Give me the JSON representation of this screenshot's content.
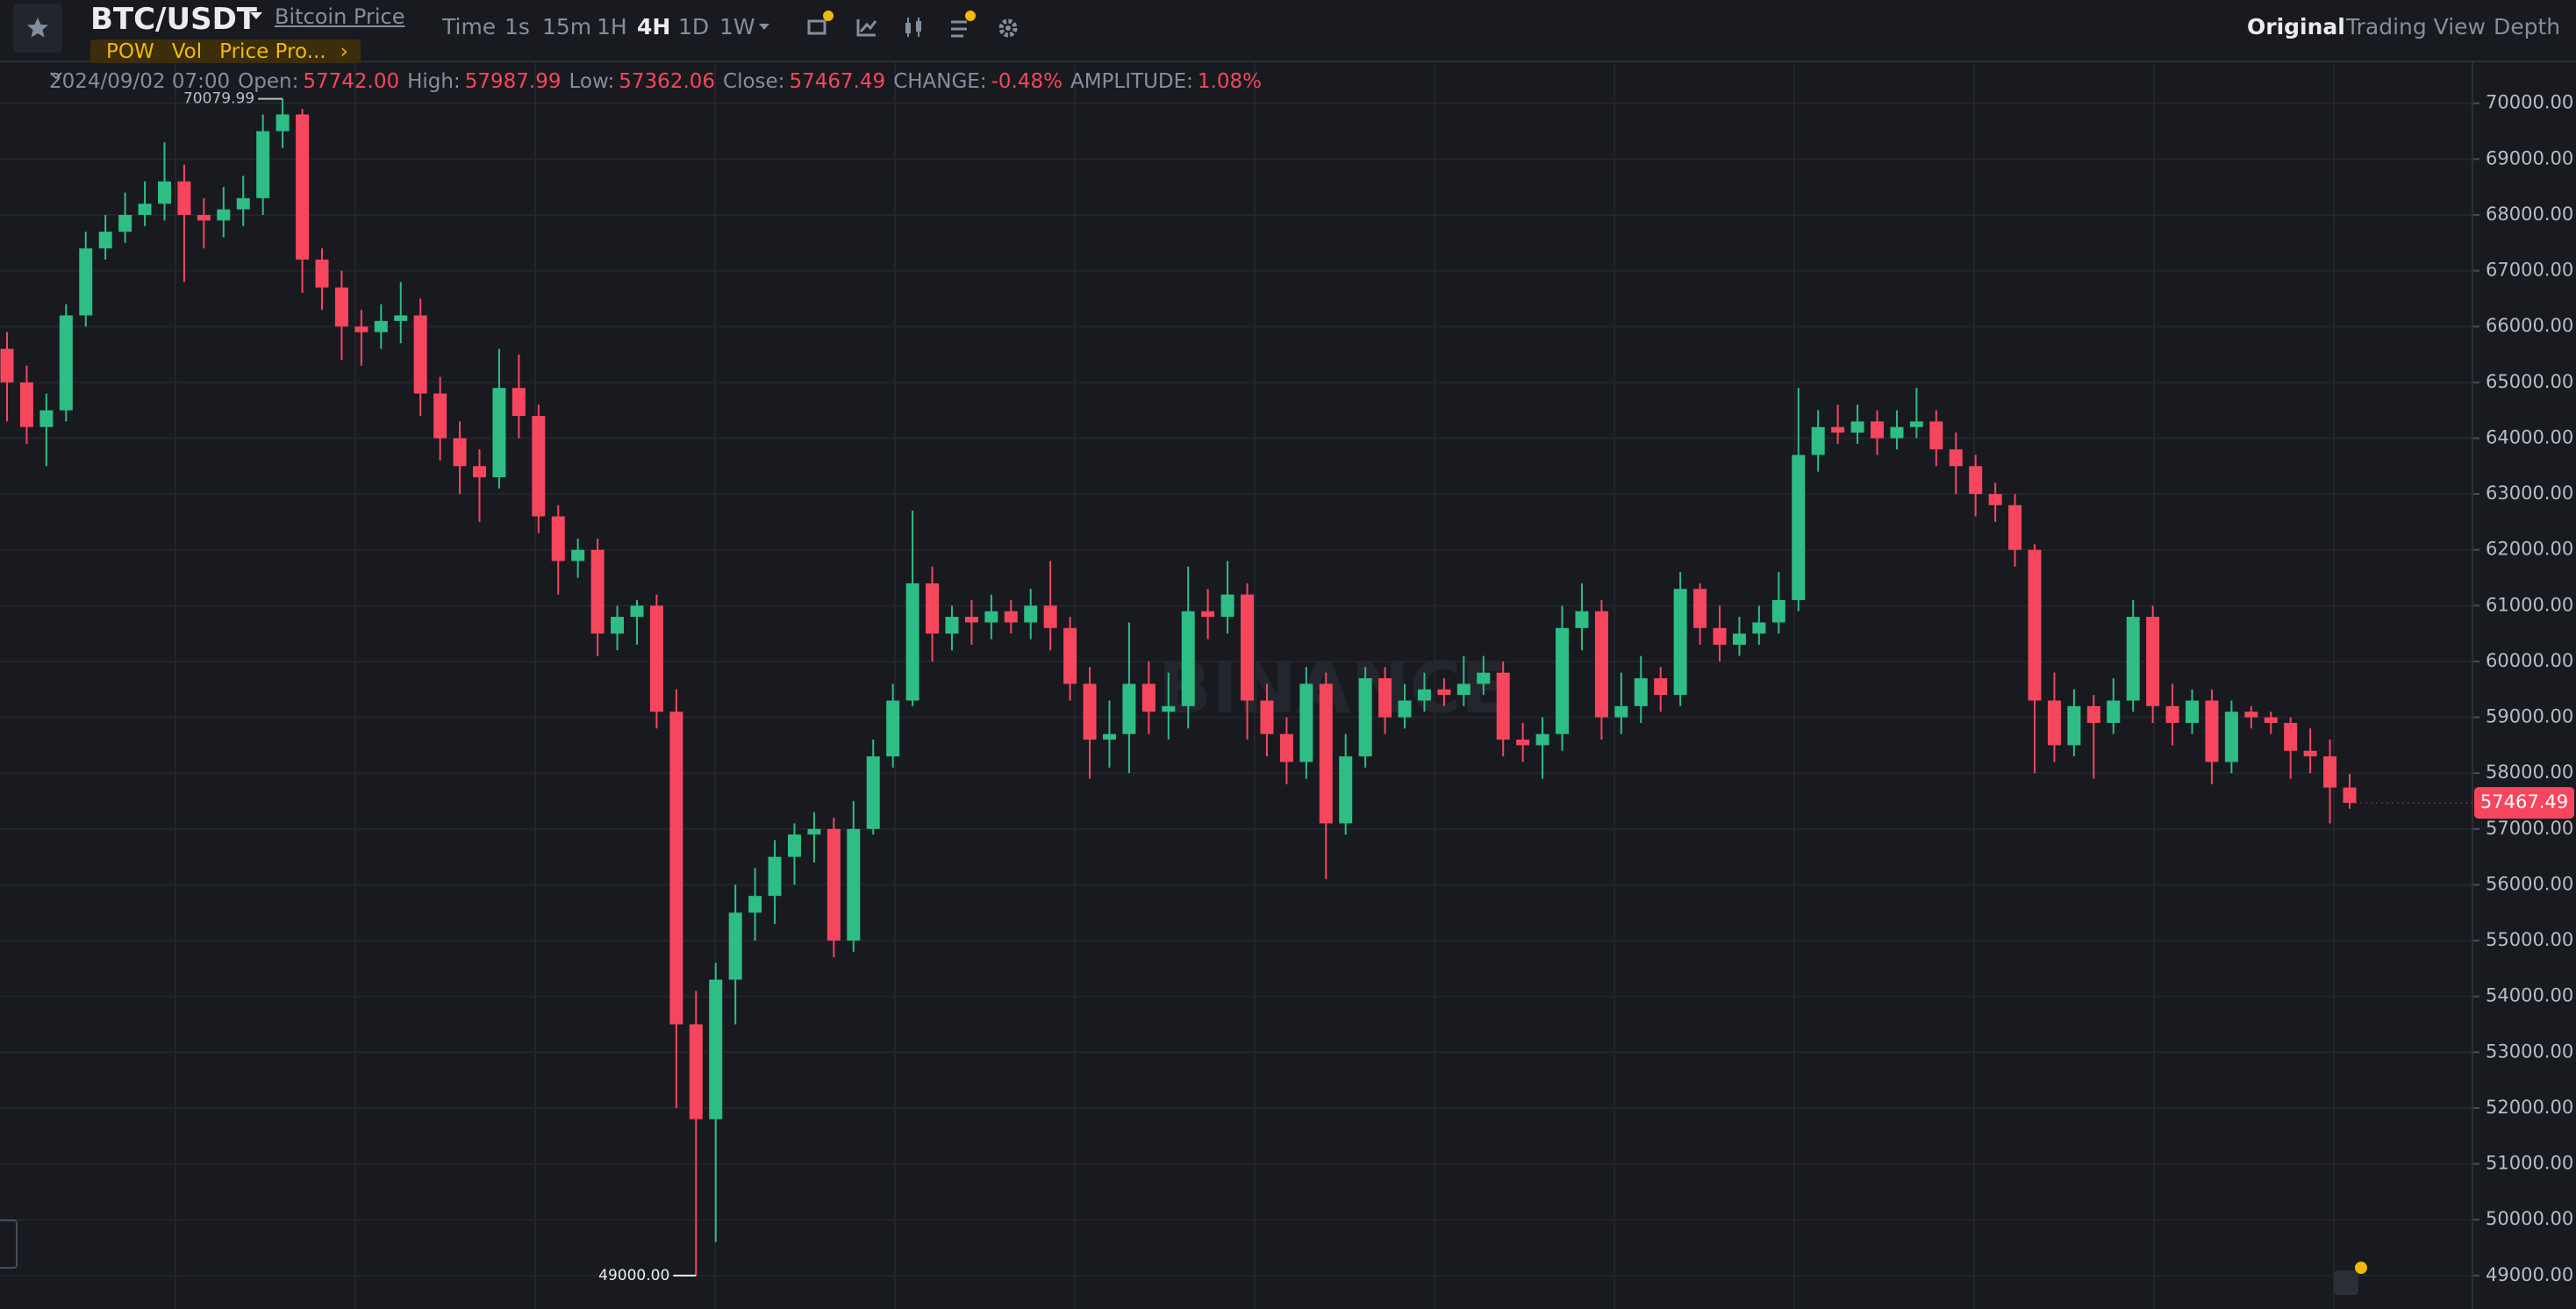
{
  "toolbar": {
    "symbol": "BTC/USDT",
    "link": "Bitcoin Price",
    "intervals": [
      "Time",
      "1s",
      "15m",
      "1H",
      "4H",
      "1D",
      "1W"
    ],
    "active_interval": "4H",
    "tags": [
      "POW",
      "Vol",
      "Price Pro..."
    ],
    "views": [
      "Original",
      "Trading View",
      "Depth"
    ],
    "active_view": "Original"
  },
  "info": {
    "date": "2024/09/02 07:00",
    "items": [
      {
        "label": "Open:",
        "value": "57742.00"
      },
      {
        "label": "High:",
        "value": "57987.99"
      },
      {
        "label": "Low:",
        "value": "57362.06"
      },
      {
        "label": "Close:",
        "value": "57467.49"
      },
      {
        "label": "CHANGE:",
        "value": "-0.48%"
      },
      {
        "label": "AMPLITUDE:",
        "value": "1.08%"
      }
    ]
  },
  "watermark": "BINANCE",
  "chart_data": {
    "type": "candlestick",
    "up_color": "#2ebd85",
    "down_color": "#f6465d",
    "grid": true,
    "ylim": [
      48400,
      70750
    ],
    "yticks": [
      {
        "value": 49000,
        "label": "49000.00"
      },
      {
        "value": 50000,
        "label": "50000.00"
      },
      {
        "value": 51000,
        "label": "51000.00"
      },
      {
        "value": 52000,
        "label": "52000.00"
      },
      {
        "value": 53000,
        "label": "53000.00"
      },
      {
        "value": 54000,
        "label": "54000.00"
      },
      {
        "value": 55000,
        "label": "55000.00"
      },
      {
        "value": 56000,
        "label": "56000.00"
      },
      {
        "value": 57000,
        "label": "57000.00"
      },
      {
        "value": 58000,
        "label": "58000.00"
      },
      {
        "value": 59000,
        "label": "59000.00"
      },
      {
        "value": 60000,
        "label": "60000.00"
      },
      {
        "value": 61000,
        "label": "61000.00"
      },
      {
        "value": 62000,
        "label": "62000.00"
      },
      {
        "value": 63000,
        "label": "63000.00"
      },
      {
        "value": 64000,
        "label": "64000.00"
      },
      {
        "value": 65000,
        "label": "65000.00"
      },
      {
        "value": 66000,
        "label": "66000.00"
      },
      {
        "value": 67000,
        "label": "67000.00"
      },
      {
        "value": 68000,
        "label": "68000.00"
      },
      {
        "value": 69000,
        "label": "69000.00"
      },
      {
        "value": 70000,
        "label": "70000.00"
      }
    ],
    "open": [
      65600,
      65000,
      64200,
      64500,
      66200,
      67400,
      67700,
      68000,
      68200,
      68600,
      68000,
      67900,
      68100,
      68300,
      69500,
      69800,
      67200,
      66700,
      66000,
      65900,
      66100,
      66200,
      64800,
      64000,
      63500,
      63300,
      64900,
      64400,
      62600,
      61800,
      62000,
      60500,
      60800,
      61000,
      59100,
      53500,
      51800,
      54300,
      55500,
      55800,
      56500,
      56900,
      57000,
      55000,
      57000,
      58300,
      59300,
      61400,
      60500,
      60800,
      60700,
      60900,
      60700,
      61000,
      60600,
      59600,
      58600,
      58700,
      59600,
      59100,
      59200,
      60900,
      60800,
      61200,
      59300,
      58700,
      58200,
      59600,
      57100,
      58300,
      59700,
      59000,
      59300,
      59500,
      59400,
      59600,
      59800,
      58600,
      58500,
      58700,
      60600,
      60900,
      59000,
      59200,
      59700,
      59400,
      61300,
      60600,
      60300,
      60500,
      60700,
      61100,
      63700,
      64200,
      64100,
      64300,
      64000,
      64200,
      64300,
      63800,
      63500,
      63000,
      62800,
      62000,
      59300,
      58500,
      59200,
      58900,
      59300,
      60800,
      59200,
      58900,
      59300,
      58200,
      59100,
      59000,
      58900,
      58400,
      58300,
      57742
    ],
    "high": [
      65900,
      65300,
      64800,
      66400,
      67700,
      68000,
      68400,
      68600,
      69300,
      68900,
      68300,
      68500,
      68700,
      69800,
      70079.99,
      69900,
      67400,
      67000,
      66300,
      66400,
      66800,
      66500,
      65100,
      64300,
      63800,
      65600,
      65500,
      64600,
      62800,
      62200,
      62200,
      61000,
      61100,
      61200,
      59500,
      54100,
      54600,
      56000,
      56300,
      56800,
      57100,
      57300,
      57200,
      57500,
      58600,
      59600,
      62700,
      61700,
      61000,
      61100,
      61200,
      61100,
      61300,
      61800,
      60800,
      59900,
      59300,
      60700,
      60000,
      59800,
      61700,
      61300,
      61800,
      61400,
      59600,
      59000,
      59900,
      59800,
      58700,
      59900,
      59900,
      59600,
      59800,
      59700,
      60100,
      60100,
      60000,
      58900,
      59000,
      61000,
      61400,
      61100,
      59800,
      60100,
      59900,
      61600,
      61400,
      61000,
      60800,
      61000,
      61600,
      64900,
      64500,
      64600,
      64600,
      64500,
      64500,
      64900,
      64500,
      64100,
      63700,
      63200,
      63000,
      62100,
      59800,
      59500,
      59400,
      59700,
      61100,
      61000,
      59600,
      59500,
      59500,
      59300,
      59200,
      59100,
      59000,
      58800,
      58600,
      57987.99
    ],
    "low": [
      64300,
      63900,
      63500,
      64300,
      66000,
      67200,
      67500,
      67800,
      67900,
      66800,
      67400,
      67600,
      67800,
      68000,
      69200,
      66600,
      66300,
      65400,
      65300,
      65600,
      65700,
      64400,
      63600,
      63000,
      62500,
      63100,
      64000,
      62300,
      61200,
      61500,
      60100,
      60200,
      60300,
      58800,
      52000,
      49000,
      49600,
      53500,
      55000,
      55300,
      56000,
      56400,
      54700,
      54800,
      56900,
      58100,
      59200,
      60000,
      60200,
      60300,
      60400,
      60500,
      60400,
      60200,
      59300,
      57900,
      58100,
      58000,
      58700,
      58600,
      58800,
      60400,
      60500,
      58600,
      58300,
      57800,
      57900,
      56100,
      56900,
      58100,
      58700,
      58800,
      59100,
      59200,
      59200,
      59400,
      58300,
      58200,
      57900,
      58400,
      60200,
      58600,
      58700,
      58900,
      59100,
      59200,
      60300,
      60000,
      60100,
      60300,
      60500,
      60900,
      63400,
      63900,
      63900,
      63700,
      63800,
      64000,
      63500,
      63000,
      62600,
      62500,
      61700,
      58000,
      58200,
      58300,
      57900,
      58700,
      59100,
      58900,
      58500,
      58700,
      57800,
      58000,
      58800,
      58700,
      57900,
      58000,
      57100,
      57362.06
    ],
    "close": [
      65000,
      64200,
      64500,
      66200,
      67400,
      67700,
      68000,
      68200,
      68600,
      68000,
      67900,
      68100,
      68300,
      69500,
      69800,
      67200,
      66700,
      66000,
      65900,
      66100,
      66200,
      64800,
      64000,
      63500,
      63300,
      64900,
      64400,
      62600,
      61800,
      62000,
      60500,
      60800,
      61000,
      59100,
      53500,
      51800,
      54300,
      55500,
      55800,
      56500,
      56900,
      57000,
      55000,
      57000,
      58300,
      59300,
      61400,
      60500,
      60800,
      60700,
      60900,
      60700,
      61000,
      60600,
      59600,
      58600,
      58700,
      59600,
      59100,
      59200,
      60900,
      60800,
      61200,
      59300,
      58700,
      58200,
      59600,
      57100,
      58300,
      59700,
      59000,
      59300,
      59500,
      59400,
      59600,
      59800,
      58600,
      58500,
      58700,
      60600,
      60900,
      59000,
      59200,
      59700,
      59400,
      61300,
      60600,
      60300,
      60500,
      60700,
      61100,
      63700,
      64200,
      64100,
      64300,
      64000,
      64200,
      64300,
      63800,
      63500,
      63000,
      62800,
      62000,
      59300,
      58500,
      59200,
      58900,
      59300,
      60800,
      59200,
      58900,
      59300,
      58200,
      59100,
      59000,
      58900,
      58400,
      58300,
      57742,
      57467.49
    ],
    "annotations": {
      "high_label": "70079.99",
      "low_label": "49000.00",
      "last_price_label": "57467.49"
    }
  }
}
